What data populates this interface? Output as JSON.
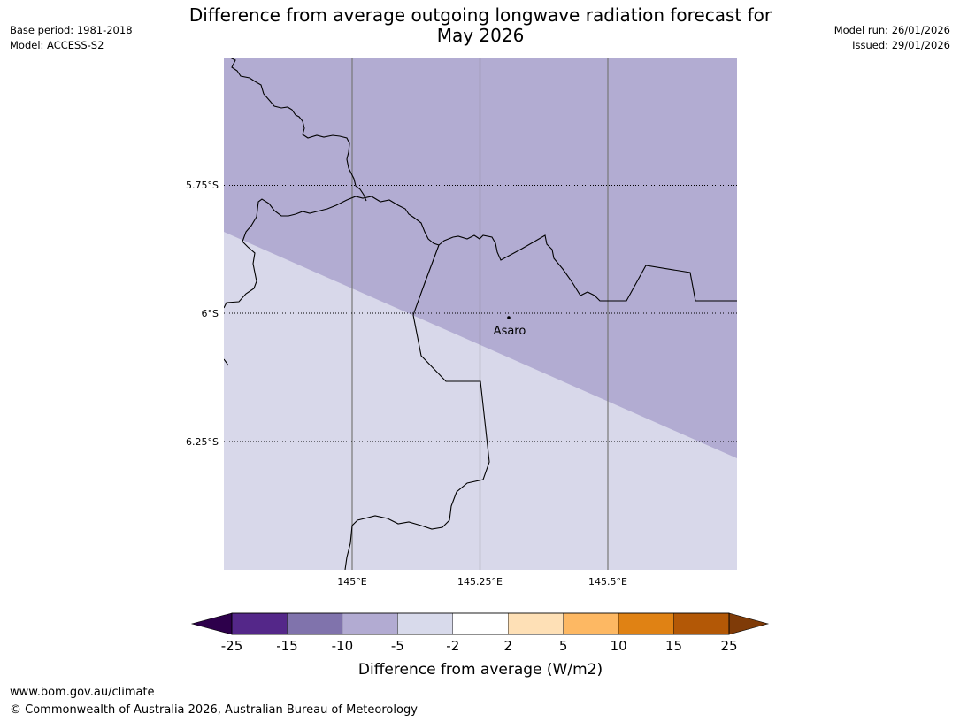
{
  "header": {
    "base_period": "Base period: 1981-2018",
    "model": "Model: ACCESS-S2",
    "model_run": "Model run: 26/01/2026",
    "issued": "Issued: 29/01/2026",
    "title_line1": "Difference from average outgoing longwave radiation forecast for",
    "title_line2": "May 2026"
  },
  "map": {
    "lat_labels": [
      "5.75°S",
      "6°S",
      "6.25°S"
    ],
    "lon_labels": [
      "145°E",
      "145.25°E",
      "145.5°E"
    ],
    "location_label": "Asaro",
    "colors": {
      "band_minus10_to_minus5": "#b2acd2",
      "band_minus5_to_minus2": "#d8d8ea"
    }
  },
  "legend": {
    "title": "Difference from average (W/m2)",
    "ticks": [
      "-25",
      "-15",
      "-10",
      "-5",
      "-2",
      "2",
      "5",
      "10",
      "15",
      "25"
    ],
    "colors": [
      "#2d004b",
      "#542789",
      "#8073ac",
      "#b2abd2",
      "#d8daeb",
      "#ffffff",
      "#fee0b6",
      "#fdb863",
      "#e08214",
      "#b35806",
      "#7f3b08"
    ]
  },
  "footer": {
    "url": "www.bom.gov.au/climate",
    "copyright": "© Commonwealth of Australia 2026, Australian Bureau of Meteorology"
  }
}
